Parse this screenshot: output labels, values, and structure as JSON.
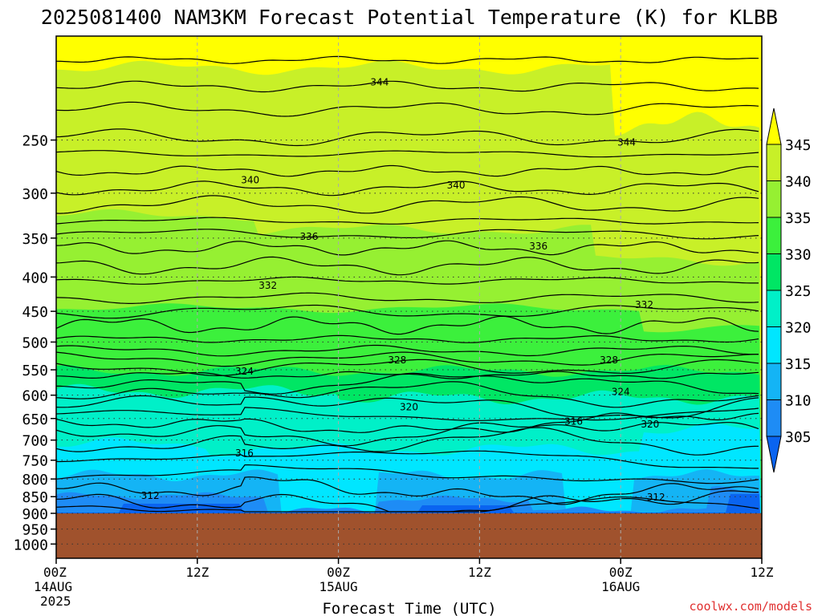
{
  "header": {
    "title": "2025081400 NAM3KM Forecast Potential Temperature (K) for KLBB"
  },
  "footer": {
    "credit": "coolwx.com/models"
  },
  "chart_data": {
    "type": "heatmap",
    "title": "2025081400 NAM3KM Forecast Potential Temperature (K) for KLBB",
    "xlabel": "Forecast Time (UTC)",
    "ylabel": "",
    "x_range_hours": [
      0,
      60
    ],
    "y_range_hpa": [
      1050,
      175
    ],
    "y_scale": "log",
    "surface_pressure_hpa": 900,
    "grid": true,
    "x_ticks": [
      {
        "hour": 0,
        "label": "00Z",
        "sub": "14AUG",
        "sub2": "2025"
      },
      {
        "hour": 12,
        "label": "12Z",
        "sub": "",
        "sub2": ""
      },
      {
        "hour": 24,
        "label": "00Z",
        "sub": "15AUG",
        "sub2": ""
      },
      {
        "hour": 36,
        "label": "12Z",
        "sub": "",
        "sub2": ""
      },
      {
        "hour": 48,
        "label": "00Z",
        "sub": "16AUG",
        "sub2": ""
      },
      {
        "hour": 60,
        "label": "12Z",
        "sub": "",
        "sub2": ""
      }
    ],
    "y_ticks": [
      {
        "p": 250,
        "label": "250"
      },
      {
        "p": 300,
        "label": "300"
      },
      {
        "p": 350,
        "label": "350"
      },
      {
        "p": 400,
        "label": "400"
      },
      {
        "p": 450,
        "label": "450"
      },
      {
        "p": 500,
        "label": "500"
      },
      {
        "p": 550,
        "label": "550"
      },
      {
        "p": 600,
        "label": "600"
      },
      {
        "p": 650,
        "label": "650"
      },
      {
        "p": 700,
        "label": "700"
      },
      {
        "p": 750,
        "label": "750"
      },
      {
        "p": 800,
        "label": "800"
      },
      {
        "p": 850,
        "label": "850"
      },
      {
        "p": 900,
        "label": "900"
      },
      {
        "p": 950,
        "label": "950"
      },
      {
        "p": 1000,
        "label": "1000"
      }
    ],
    "colorbar": {
      "levels": [
        305,
        310,
        315,
        320,
        325,
        330,
        335,
        340,
        345
      ],
      "labels": [
        "305",
        "310",
        "315",
        "320",
        "325",
        "330",
        "335",
        "340",
        "345"
      ],
      "colors": [
        "#0a64f0",
        "#1e8cf5",
        "#14b4f5",
        "#00e6ff",
        "#00f0c8",
        "#00e664",
        "#3cf03c",
        "#96f032",
        "#c8f028",
        "#ffff00"
      ]
    },
    "surface_color": "#a0522d",
    "contour_interval_k": 2,
    "contour_labels": [
      {
        "value": "344",
        "hour": 27.5,
        "p": 205
      },
      {
        "value": "344",
        "hour": 48.5,
        "p": 252
      },
      {
        "value": "340",
        "hour": 16.5,
        "p": 287
      },
      {
        "value": "340",
        "hour": 34.0,
        "p": 292
      },
      {
        "value": "336",
        "hour": 21.5,
        "p": 348
      },
      {
        "value": "336",
        "hour": 41.0,
        "p": 360
      },
      {
        "value": "332",
        "hour": 18.0,
        "p": 412
      },
      {
        "value": "332",
        "hour": 50.0,
        "p": 440
      },
      {
        "value": "328",
        "hour": 29.0,
        "p": 532
      },
      {
        "value": "328",
        "hour": 47.0,
        "p": 532
      },
      {
        "value": "324",
        "hour": 16.0,
        "p": 553
      },
      {
        "value": "324",
        "hour": 48.0,
        "p": 593
      },
      {
        "value": "320",
        "hour": 30.0,
        "p": 625
      },
      {
        "value": "320",
        "hour": 50.5,
        "p": 663
      },
      {
        "value": "316",
        "hour": 16.0,
        "p": 732
      },
      {
        "value": "316",
        "hour": 44.0,
        "p": 657
      },
      {
        "value": "312",
        "hour": 8.0,
        "p": 847
      },
      {
        "value": "312",
        "hour": 51.0,
        "p": 852
      }
    ]
  }
}
